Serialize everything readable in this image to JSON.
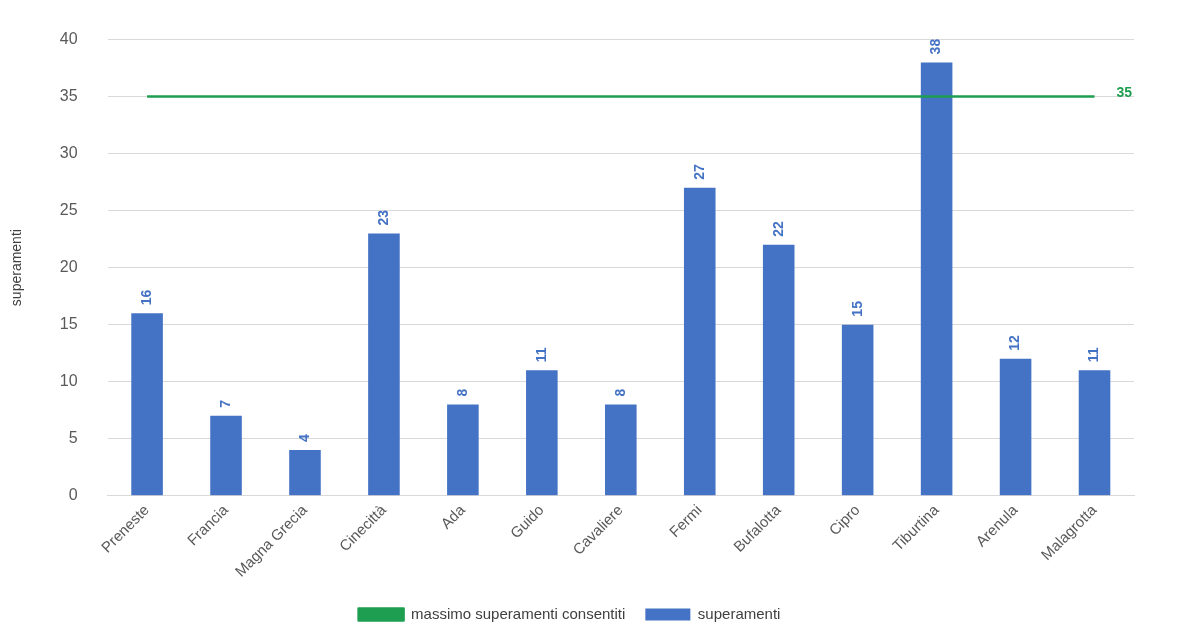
{
  "chart_data": {
    "type": "bar",
    "ylabel": "superamenti",
    "categories": [
      "Preneste",
      "Francia",
      "Magna Grecia",
      "Cinecittà",
      "Ada",
      "Guido",
      "Cavaliere",
      "Fermi",
      "Bufalotta",
      "Cipro",
      "Tiburtina",
      "Arenula",
      "Malagrotta"
    ],
    "series": [
      {
        "name": "superamenti",
        "color": "#4472c4",
        "values": [
          16,
          7,
          4,
          23,
          8,
          11,
          8,
          27,
          22,
          15,
          38,
          12,
          11
        ]
      },
      {
        "name": "massimo superamenti consentiti",
        "type": "line",
        "color": "#1e9e50",
        "values": [
          35,
          35,
          35,
          35,
          35,
          35,
          35,
          35,
          35,
          35,
          35,
          35,
          35
        ],
        "value_labels": [
          null,
          null,
          null,
          null,
          null,
          null,
          null,
          null,
          null,
          null,
          null,
          null,
          "35"
        ]
      }
    ],
    "data_labels": true,
    "ylim": [
      0,
      40
    ],
    "yticks": [
      0,
      5,
      10,
      15,
      20,
      25,
      30,
      35,
      40
    ],
    "grid": "y",
    "legend": "bottom",
    "marker": "none"
  }
}
